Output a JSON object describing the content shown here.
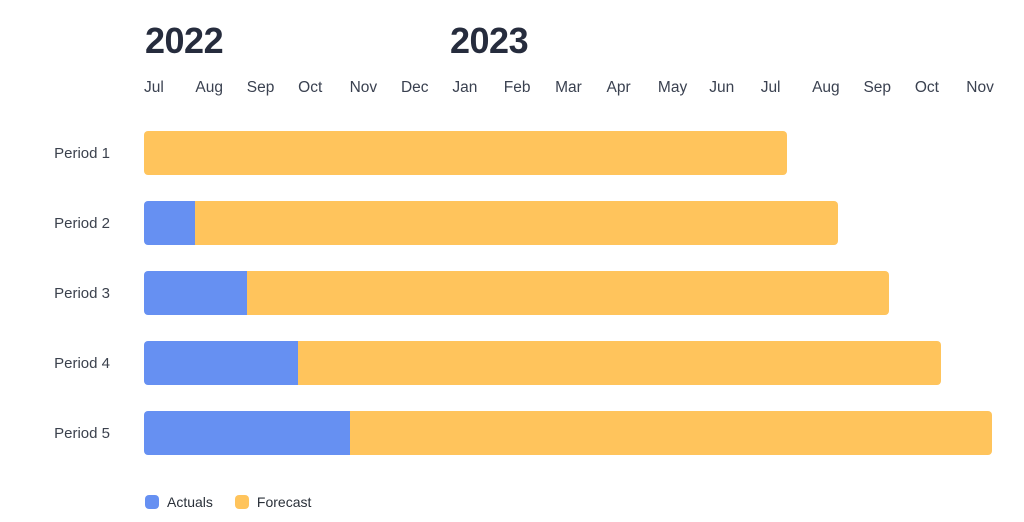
{
  "chart_data": {
    "type": "bar",
    "subtype": "horizontal-stacked-gantt",
    "title": "",
    "xlabel": "",
    "ylabel": "",
    "x_axis": {
      "unit": "month",
      "start": "Jul 2022",
      "end": "Nov 2023",
      "gridlines": false
    },
    "year_labels": [
      {
        "text": "2022",
        "starts_at_month_index": 0
      },
      {
        "text": "2023",
        "starts_at_month_index": 6
      }
    ],
    "month_labels": [
      "Jul",
      "Aug",
      "Sep",
      "Oct",
      "Nov",
      "Dec",
      "Jan",
      "Feb",
      "Mar",
      "Apr",
      "May",
      "Jun",
      "Jul",
      "Aug",
      "Sep",
      "Oct",
      "Nov"
    ],
    "categories": [
      "Period 1",
      "Period 2",
      "Period 3",
      "Period 4",
      "Period 5"
    ],
    "series": [
      {
        "name": "Actuals",
        "color": "#6690F2",
        "values_months": [
          0,
          1,
          2,
          3,
          4
        ]
      },
      {
        "name": "Forecast",
        "color": "#FFC45C",
        "values_months": [
          12.5,
          12.5,
          12.5,
          12.5,
          12.5
        ]
      }
    ],
    "bars_start_at": "Jul 2022",
    "legend": {
      "position": "bottom-left",
      "items": [
        "Actuals",
        "Forecast"
      ]
    }
  },
  "colors": {
    "actuals": "#6690F2",
    "forecast": "#FFC45C",
    "year_text": "#262c3d",
    "axis_text": "#3a4150",
    "background": "#FFFFFF"
  }
}
